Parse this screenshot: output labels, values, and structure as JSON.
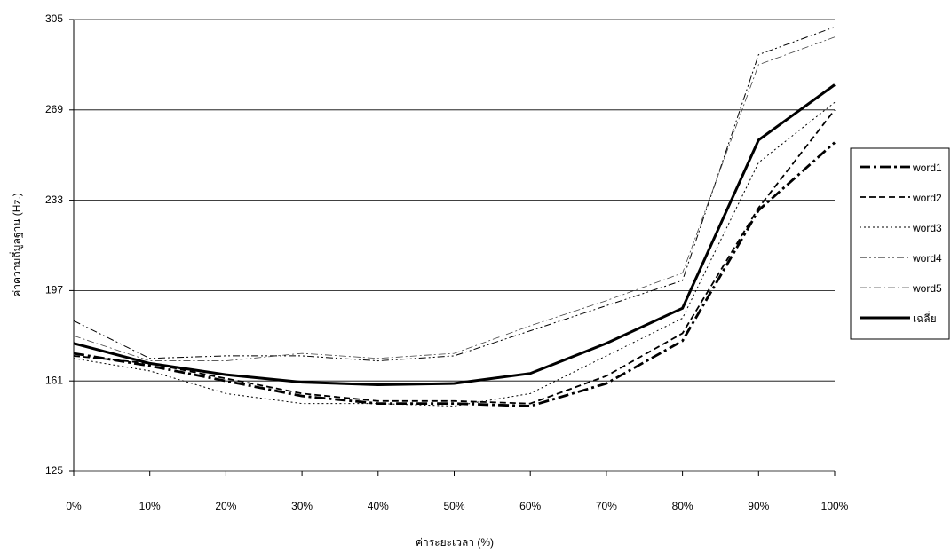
{
  "chart_data": {
    "type": "line",
    "xlabel": "ค่าระยะเวลา (%)",
    "ylabel": "ค่าความถี่มูลฐาน (Hz.)",
    "categories": [
      "0%",
      "10%",
      "20%",
      "30%",
      "40%",
      "50%",
      "60%",
      "70%",
      "80%",
      "90%",
      "100%"
    ],
    "ylim": [
      125,
      305
    ],
    "yticks": [
      125,
      161,
      197,
      233,
      269,
      305
    ],
    "grid": true,
    "legend": "right",
    "series": [
      {
        "name": "word1",
        "color": "#000000",
        "width": 2.8,
        "dash": "12,4,3,4",
        "values": [
          172,
          167,
          161,
          155,
          152,
          152,
          151,
          160,
          177,
          229,
          256
        ]
      },
      {
        "name": "word2",
        "color": "#000000",
        "width": 1.8,
        "dash": "7,4",
        "values": [
          171,
          168,
          162,
          156,
          153,
          153,
          152,
          163,
          180,
          230,
          269
        ]
      },
      {
        "name": "word3",
        "color": "#000000",
        "width": 1,
        "dash": "2,3",
        "values": [
          170,
          165,
          156,
          152,
          152,
          151,
          156,
          171,
          186,
          248,
          272
        ]
      },
      {
        "name": "word4",
        "color": "#000000",
        "width": 1,
        "dash": "8,3,2,3,2,3",
        "values": [
          185,
          170,
          171,
          171,
          169,
          171,
          181,
          191,
          201,
          291,
          302
        ]
      },
      {
        "name": "word5",
        "color": "#444444",
        "width": 0.8,
        "dash": "8,3,2,3",
        "values": [
          179,
          169,
          169,
          172,
          170,
          172,
          183,
          193,
          204,
          287,
          298
        ]
      },
      {
        "name": "เฉลี่ย",
        "color": "#000000",
        "width": 3,
        "dash": "none",
        "values": [
          176,
          168,
          163.5,
          160.5,
          159.5,
          160,
          164,
          176,
          190,
          257,
          279
        ]
      }
    ]
  }
}
